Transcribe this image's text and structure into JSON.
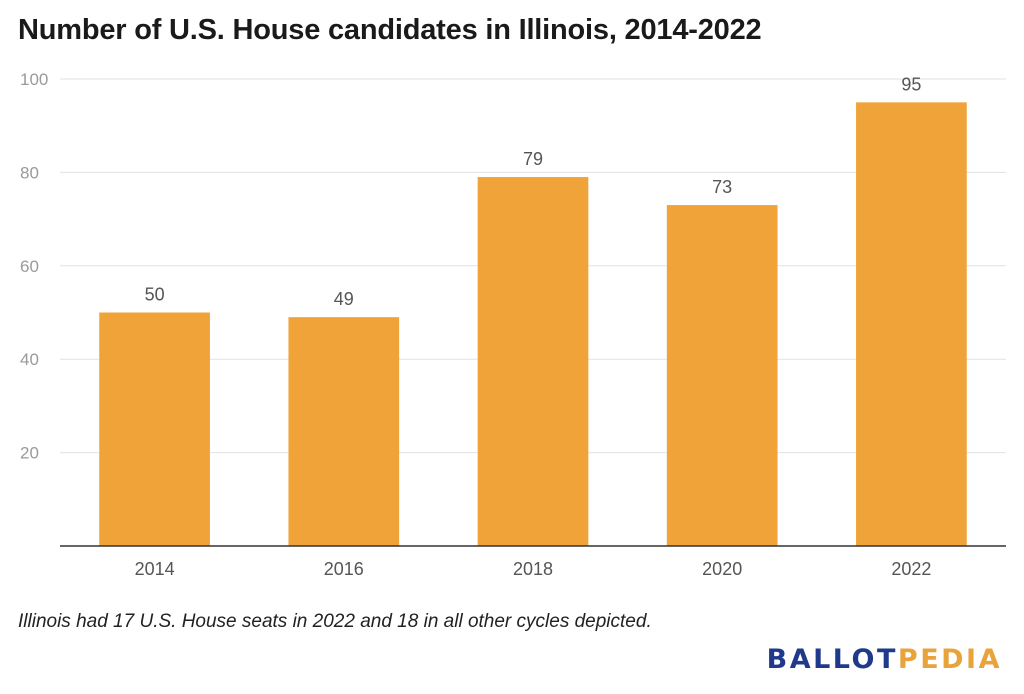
{
  "header": {
    "title": "Number of U.S. House candidates in Illinois, 2014-2022"
  },
  "footnote": "Illinois had 17 U.S. House seats in 2022 and 18 in all other cycles depicted.",
  "logo": {
    "part1": "BALLOT",
    "part2": "PEDIA",
    "color1": "#1f3a8a",
    "color2": "#e9a33b"
  },
  "chart_data": {
    "type": "bar",
    "title": "Number of U.S. House candidates in Illinois, 2014-2022",
    "categories": [
      "2014",
      "2016",
      "2018",
      "2020",
      "2022"
    ],
    "values": [
      50,
      49,
      79,
      73,
      95
    ],
    "data_labels": [
      "50",
      "49",
      "79",
      "73",
      "95"
    ],
    "xlabel": "",
    "ylabel": "",
    "ylim": [
      0,
      100
    ],
    "yticks": [
      20,
      40,
      60,
      80,
      100
    ],
    "grid": true,
    "bar_color": "#f0a338"
  }
}
